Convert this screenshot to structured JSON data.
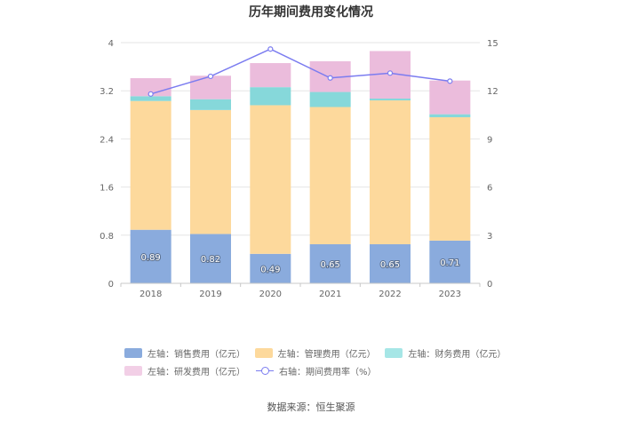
{
  "chart_data": {
    "type": "bar",
    "stacked": true,
    "title": "历年期间费用变化情况",
    "categories": [
      "2018",
      "2019",
      "2020",
      "2021",
      "2022",
      "2023"
    ],
    "left_axis": {
      "min": 0,
      "max": 4,
      "ticks": [
        "0",
        "0.8",
        "1.6",
        "2.4",
        "3.2",
        "4"
      ]
    },
    "right_axis": {
      "min": 0,
      "max": 15,
      "ticks": [
        "0",
        "3",
        "6",
        "9",
        "12",
        "15"
      ]
    },
    "series": [
      {
        "name": "左轴：销售费用（亿元）",
        "axis": "left",
        "color": "#8aabdd",
        "values": [
          0.89,
          0.82,
          0.49,
          0.65,
          0.65,
          0.71
        ],
        "labels": [
          "0.89",
          "0.82",
          "0.49",
          "0.65",
          "0.65",
          "0.71"
        ]
      },
      {
        "name": "左轴：管理费用（亿元）",
        "axis": "left",
        "color": "#fdd99c",
        "values": [
          2.14,
          2.06,
          2.47,
          2.28,
          2.39,
          2.05
        ]
      },
      {
        "name": "左轴：财务费用（亿元）",
        "axis": "left",
        "color": "#86d8da",
        "values": [
          0.08,
          0.18,
          0.3,
          0.25,
          0.03,
          0.05
        ]
      },
      {
        "name": "左轴：研发费用（亿元）",
        "axis": "left",
        "color": "#ebbcdc",
        "values": [
          0.3,
          0.39,
          0.4,
          0.51,
          0.79,
          0.56
        ]
      },
      {
        "name": "右轴：期间费用率（%）",
        "axis": "right",
        "type": "line",
        "color": "#7b7cf0",
        "values": [
          11.8,
          12.9,
          14.6,
          12.8,
          13.1,
          12.6
        ]
      }
    ]
  },
  "source": "数据来源：恒生聚源"
}
